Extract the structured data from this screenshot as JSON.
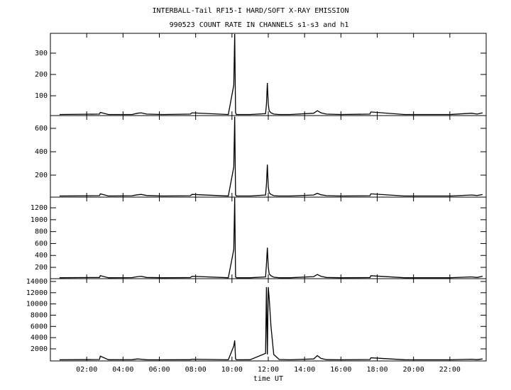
{
  "chart_data": [
    {
      "type": "line",
      "title": "INTERBALL-Tail RF15-I HARD/SOFT X-RAY EMISSION",
      "subtitle": "990523  COUNT RATE IN CHANNELS s1-s3 and h1",
      "x": [
        0.5,
        2.7,
        2.75,
        3.2,
        4.5,
        4.8,
        5.0,
        5.3,
        6.2,
        7.7,
        7.8,
        9.8,
        10.1,
        10.15,
        10.2,
        10.25,
        11.0,
        11.85,
        11.9,
        11.95,
        12.0,
        12.05,
        12.15,
        12.3,
        12.6,
        13.2,
        14.5,
        14.7,
        14.9,
        15.2,
        16.0,
        17.6,
        17.65,
        19.5,
        22.0,
        23.2,
        23.5,
        23.8
      ],
      "values": [
        12,
        14,
        22,
        12,
        12,
        18,
        20,
        14,
        12,
        14,
        20,
        12,
        150,
        390,
        20,
        12,
        12,
        16,
        60,
        160,
        60,
        30,
        20,
        14,
        12,
        12,
        18,
        30,
        20,
        14,
        12,
        14,
        24,
        12,
        12,
        18,
        14,
        20
      ],
      "color": "#000000",
      "xlim": [
        0,
        24
      ],
      "ylim": [
        7,
        393
      ],
      "yticks": [
        100,
        200,
        300
      ]
    },
    {
      "type": "line",
      "x": [
        0.5,
        2.7,
        2.75,
        3.2,
        4.5,
        4.8,
        5.0,
        5.3,
        6.2,
        7.7,
        7.8,
        9.8,
        10.1,
        10.15,
        10.2,
        10.25,
        11.0,
        11.85,
        11.9,
        11.95,
        12.0,
        12.05,
        12.15,
        12.3,
        12.6,
        13.2,
        14.5,
        14.7,
        14.9,
        15.2,
        16.0,
        17.6,
        17.65,
        19.5,
        22.0,
        23.2,
        23.5,
        23.8
      ],
      "values": [
        22,
        25,
        40,
        22,
        24,
        32,
        35,
        26,
        22,
        24,
        35,
        22,
        270,
        700,
        30,
        22,
        22,
        30,
        120,
        290,
        100,
        50,
        35,
        25,
        22,
        22,
        30,
        45,
        32,
        25,
        22,
        24,
        40,
        22,
        22,
        30,
        26,
        34
      ],
      "color": "#000000",
      "xlim": [
        0,
        24
      ],
      "ylim": [
        12,
        709
      ],
      "yticks": [
        200,
        400,
        600
      ]
    },
    {
      "type": "line",
      "x": [
        0.5,
        2.7,
        2.75,
        3.2,
        4.5,
        4.8,
        5.0,
        5.3,
        6.2,
        7.7,
        7.8,
        9.8,
        10.1,
        10.15,
        10.2,
        10.25,
        11.0,
        11.85,
        11.9,
        11.95,
        12.0,
        12.05,
        12.15,
        12.3,
        12.6,
        13.2,
        14.5,
        14.7,
        14.9,
        15.2,
        16.0,
        17.6,
        17.65,
        19.5,
        22.0,
        23.2,
        23.5,
        23.8
      ],
      "values": [
        25,
        30,
        60,
        25,
        28,
        45,
        50,
        30,
        25,
        28,
        50,
        25,
        500,
        1370,
        40,
        25,
        25,
        40,
        250,
        530,
        200,
        90,
        60,
        35,
        25,
        25,
        45,
        80,
        50,
        30,
        25,
        28,
        60,
        25,
        25,
        40,
        30,
        50
      ],
      "color": "#000000",
      "xlim": [
        0,
        24
      ],
      "ylim": [
        10,
        1379
      ],
      "yticks": [
        200,
        400,
        600,
        800,
        1000,
        1200
      ]
    },
    {
      "type": "line",
      "xlabel": "time UT",
      "x": [
        0.5,
        2.7,
        2.75,
        3.2,
        4.5,
        4.8,
        5.0,
        5.3,
        6.2,
        7.7,
        7.8,
        9.8,
        10.1,
        10.15,
        10.2,
        10.25,
        11.0,
        11.85,
        11.9,
        11.95,
        12.0,
        12.05,
        12.15,
        12.3,
        12.6,
        13.2,
        14.5,
        14.7,
        14.9,
        15.2,
        16.0,
        17.6,
        17.65,
        19.5,
        22.0,
        23.2,
        23.5,
        23.8
      ],
      "values": [
        50,
        100,
        700,
        60,
        80,
        200,
        150,
        60,
        50,
        60,
        150,
        50,
        2500,
        3500,
        200,
        50,
        60,
        1200,
        13000,
        1000,
        13000,
        11000,
        6000,
        1000,
        100,
        50,
        200,
        800,
        300,
        80,
        50,
        100,
        400,
        60,
        50,
        150,
        80,
        200
      ],
      "color": "#000000",
      "xlim": [
        0,
        24
      ],
      "ylim": [
        -150,
        14500
      ],
      "yticks": [
        2000,
        4000,
        6000,
        8000,
        10000,
        12000,
        14000
      ],
      "xticks": [
        {
          "value": 2,
          "label": "02:00"
        },
        {
          "value": 4,
          "label": "04:00"
        },
        {
          "value": 6,
          "label": "06:00"
        },
        {
          "value": 8,
          "label": "08:00"
        },
        {
          "value": 10,
          "label": "10:00"
        },
        {
          "value": 12,
          "label": "12:00"
        },
        {
          "value": 14,
          "label": "14:00"
        },
        {
          "value": 16,
          "label": "16:00"
        },
        {
          "value": 18,
          "label": "18:00"
        },
        {
          "value": 20,
          "label": "20:00"
        },
        {
          "value": 22,
          "label": "22:00"
        }
      ]
    }
  ]
}
